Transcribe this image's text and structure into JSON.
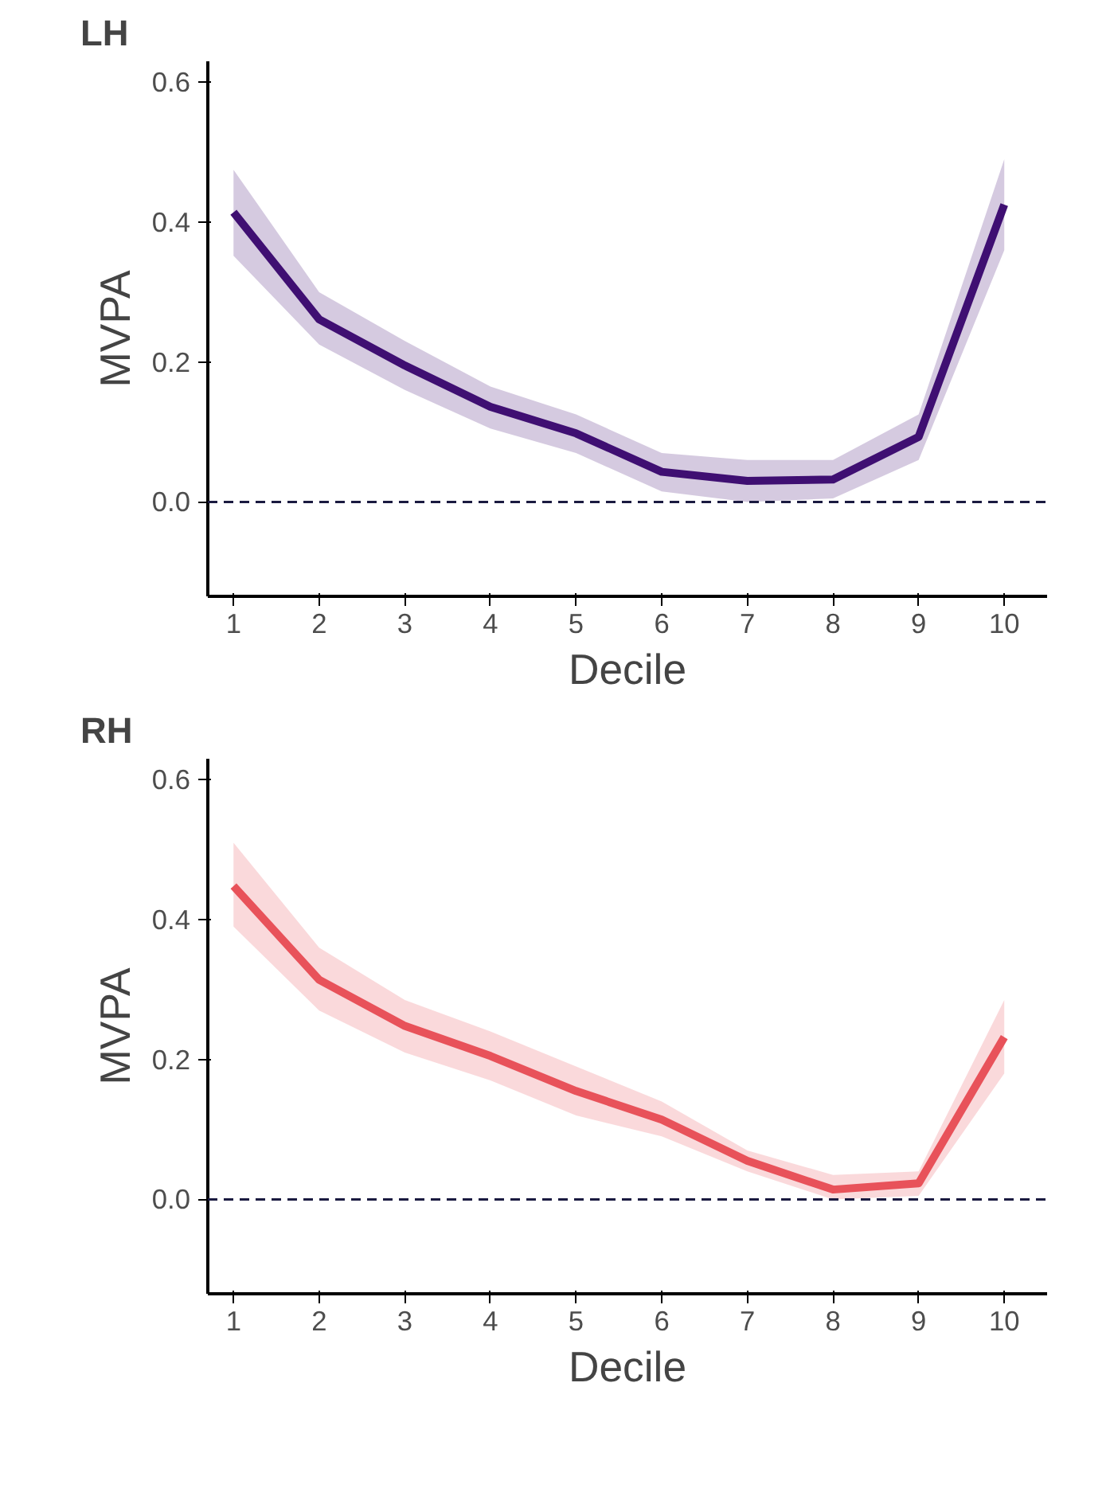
{
  "chart_data": [
    {
      "type": "line",
      "title": "LH",
      "xlabel": "Decile",
      "ylabel": "MVPA",
      "x": [
        1,
        2,
        3,
        4,
        5,
        6,
        7,
        8,
        9,
        10
      ],
      "series": [
        {
          "color": "#3f0f72",
          "values": [
            0.414,
            0.261,
            0.195,
            0.136,
            0.098,
            0.043,
            0.03,
            0.032,
            0.093,
            0.425
          ],
          "lower": [
            0.352,
            0.225,
            0.16,
            0.105,
            0.07,
            0.015,
            0.0,
            0.005,
            0.06,
            0.36
          ],
          "upper": [
            0.475,
            0.3,
            0.23,
            0.165,
            0.125,
            0.07,
            0.06,
            0.06,
            0.125,
            0.49
          ]
        }
      ],
      "xlim": [
        0.7,
        10.5
      ],
      "ylim": [
        -0.135,
        0.63
      ],
      "xticks": [
        1,
        2,
        3,
        4,
        5,
        6,
        7,
        8,
        9,
        10
      ],
      "yticks": [
        {
          "value": 0,
          "label": "0.0"
        },
        0.2,
        0.4,
        0.6
      ],
      "ref_lines": [
        {
          "axis": "y",
          "value": 0,
          "color": "#1a1a40",
          "line_style": "dashed"
        }
      ],
      "grid": false,
      "marker": "none",
      "line_style": "solid"
    },
    {
      "type": "line",
      "title": "RH",
      "xlabel": "Decile",
      "ylabel": "MVPA",
      "x": [
        1,
        2,
        3,
        4,
        5,
        6,
        7,
        8,
        9,
        10
      ],
      "series": [
        {
          "color": "#e8525a",
          "values": [
            0.448,
            0.314,
            0.248,
            0.205,
            0.155,
            0.114,
            0.055,
            0.014,
            0.023,
            0.232
          ],
          "lower": [
            0.39,
            0.27,
            0.21,
            0.17,
            0.12,
            0.09,
            0.04,
            0.0,
            0.005,
            0.18
          ],
          "upper": [
            0.51,
            0.36,
            0.285,
            0.24,
            0.19,
            0.14,
            0.07,
            0.035,
            0.04,
            0.285
          ]
        }
      ],
      "xlim": [
        0.7,
        10.5
      ],
      "ylim": [
        -0.135,
        0.63
      ],
      "xticks": [
        1,
        2,
        3,
        4,
        5,
        6,
        7,
        8,
        9,
        10
      ],
      "yticks": [
        {
          "value": 0,
          "label": "0.0"
        },
        0.2,
        0.4,
        0.6
      ],
      "ref_lines": [
        {
          "axis": "y",
          "value": 0,
          "color": "#1a1a40",
          "line_style": "dashed"
        }
      ],
      "grid": false,
      "marker": "none",
      "line_style": "solid"
    }
  ]
}
